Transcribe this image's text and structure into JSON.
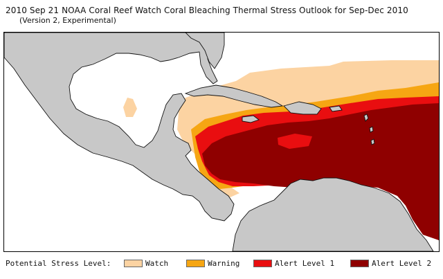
{
  "header": {
    "title": "2010 Sep 21 NOAA Coral Reef Watch Coral Bleaching Thermal Stress Outlook for  Sep-Dec 2010",
    "subtitle": "(Version 2, Experimental)"
  },
  "map": {
    "region": "Caribbean Sea and Central America",
    "colors": {
      "land": "#c8c8c8",
      "coast": "#111111",
      "ocean": "#ffffff"
    }
  },
  "legend": {
    "label": "Potential Stress Level:",
    "items": [
      {
        "name": "watch",
        "text": "Watch",
        "color": "#fcd3a2"
      },
      {
        "name": "warning",
        "text": "Warning",
        "color": "#f6a613"
      },
      {
        "name": "alert-level-1",
        "text": "Alert Level 1",
        "color": "#e90e10"
      },
      {
        "name": "alert-level-2",
        "text": "Alert Level 2",
        "color": "#8f0000"
      }
    ]
  }
}
